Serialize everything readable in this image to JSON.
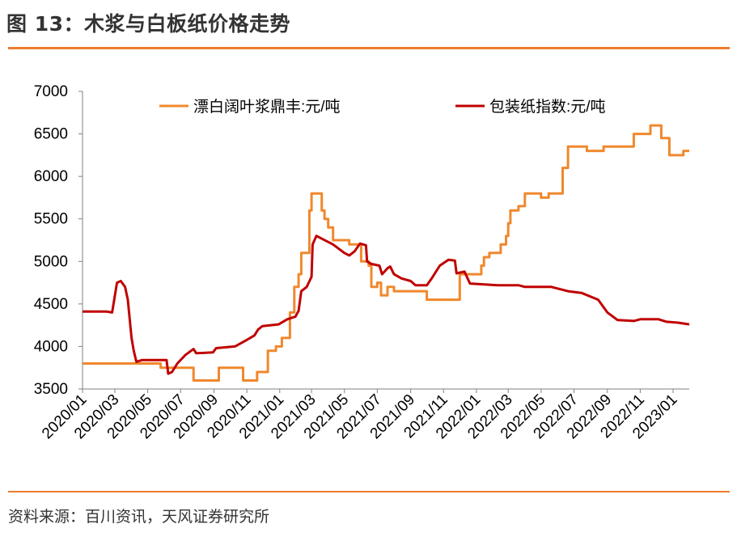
{
  "header": {
    "title": "图 13：木浆与白板纸价格走势"
  },
  "footer": {
    "source": "资料来源：百川资讯，天风证券研究所"
  },
  "colors": {
    "accent": "#ED7D31",
    "pulp": "#F0882D",
    "board": "#C00000",
    "text": "#333333"
  },
  "chart_data": {
    "type": "line",
    "title": "",
    "xlabel": "",
    "ylabel": "",
    "ylim": [
      3500,
      7000
    ],
    "yticks": [
      3500,
      4000,
      4500,
      5000,
      5500,
      6000,
      6500,
      7000
    ],
    "xlim": [
      "2020-01-01",
      "2023-01-31"
    ],
    "xtick_labels": [
      "2020/01",
      "2020/03",
      "2020/05",
      "2020/07",
      "2020/09",
      "2020/11",
      "2021/01",
      "2021/03",
      "2021/05",
      "2021/07",
      "2021/09",
      "2021/11",
      "2022/01",
      "2022/03",
      "2022/05",
      "2022/07",
      "2022/09",
      "2022/11",
      "2023/01"
    ],
    "xtick_dates": [
      "2020-01-01",
      "2020-03-01",
      "2020-05-01",
      "2020-07-01",
      "2020-09-01",
      "2020-11-01",
      "2021-01-01",
      "2021-03-01",
      "2021-05-01",
      "2021-07-01",
      "2021-09-01",
      "2021-11-01",
      "2022-01-01",
      "2022-03-01",
      "2022-05-01",
      "2022-07-01",
      "2022-09-01",
      "2022-11-01",
      "2023-01-01"
    ],
    "grid": false,
    "legend_position": "top",
    "series": [
      {
        "name": "漂白阔叶浆鼎丰:元/吨",
        "color": "#F0882D",
        "step": true,
        "points": [
          [
            "2020-01-01",
            3800
          ],
          [
            "2020-05-25",
            3750
          ],
          [
            "2020-07-25",
            3600
          ],
          [
            "2020-09-10",
            3750
          ],
          [
            "2020-10-25",
            3600
          ],
          [
            "2020-11-20",
            3700
          ],
          [
            "2020-12-10",
            3950
          ],
          [
            "2020-12-25",
            4000
          ],
          [
            "2021-01-05",
            4100
          ],
          [
            "2021-01-20",
            4400
          ],
          [
            "2021-01-28",
            4700
          ],
          [
            "2021-02-05",
            4850
          ],
          [
            "2021-02-10",
            5100
          ],
          [
            "2021-02-25",
            5600
          ],
          [
            "2021-03-01",
            5800
          ],
          [
            "2021-03-20",
            5600
          ],
          [
            "2021-03-25",
            5500
          ],
          [
            "2021-04-01",
            5400
          ],
          [
            "2021-04-10",
            5250
          ],
          [
            "2021-05-10",
            5200
          ],
          [
            "2021-06-01",
            5000
          ],
          [
            "2021-06-15",
            4950
          ],
          [
            "2021-06-20",
            4700
          ],
          [
            "2021-07-01",
            4750
          ],
          [
            "2021-07-08",
            4600
          ],
          [
            "2021-07-20",
            4700
          ],
          [
            "2021-08-01",
            4650
          ],
          [
            "2021-10-01",
            4550
          ],
          [
            "2021-12-01",
            4850
          ],
          [
            "2022-01-01",
            4850
          ],
          [
            "2022-01-10",
            4950
          ],
          [
            "2022-01-15",
            5050
          ],
          [
            "2022-01-25",
            5100
          ],
          [
            "2022-02-15",
            5200
          ],
          [
            "2022-02-25",
            5300
          ],
          [
            "2022-03-01",
            5450
          ],
          [
            "2022-03-05",
            5600
          ],
          [
            "2022-03-20",
            5650
          ],
          [
            "2022-04-01",
            5800
          ],
          [
            "2022-05-01",
            5750
          ],
          [
            "2022-05-15",
            5800
          ],
          [
            "2022-06-10",
            6100
          ],
          [
            "2022-06-20",
            6350
          ],
          [
            "2022-07-25",
            6300
          ],
          [
            "2022-08-25",
            6350
          ],
          [
            "2022-10-20",
            6500
          ],
          [
            "2022-11-20",
            6600
          ],
          [
            "2022-12-10",
            6450
          ],
          [
            "2022-12-25",
            6250
          ],
          [
            "2023-01-20",
            6300
          ],
          [
            "2023-01-31",
            6300
          ]
        ]
      },
      {
        "name": "包装纸指数:元/吨",
        "color": "#C00000",
        "step": false,
        "points": [
          [
            "2020-01-01",
            4410
          ],
          [
            "2020-02-15",
            4410
          ],
          [
            "2020-02-25",
            4400
          ],
          [
            "2020-03-05",
            4750
          ],
          [
            "2020-03-12",
            4770
          ],
          [
            "2020-03-20",
            4700
          ],
          [
            "2020-03-25",
            4550
          ],
          [
            "2020-04-01",
            4100
          ],
          [
            "2020-04-05",
            3950
          ],
          [
            "2020-04-10",
            3820
          ],
          [
            "2020-04-20",
            3840
          ],
          [
            "2020-06-05",
            3840
          ],
          [
            "2020-06-08",
            3680
          ],
          [
            "2020-06-15",
            3700
          ],
          [
            "2020-06-25",
            3800
          ],
          [
            "2020-07-10",
            3900
          ],
          [
            "2020-07-25",
            3970
          ],
          [
            "2020-07-30",
            3920
          ],
          [
            "2020-08-30",
            3930
          ],
          [
            "2020-09-05",
            3980
          ],
          [
            "2020-10-10",
            4000
          ],
          [
            "2020-10-30",
            4070
          ],
          [
            "2020-11-15",
            4130
          ],
          [
            "2020-11-22",
            4200
          ],
          [
            "2020-11-30",
            4240
          ],
          [
            "2020-12-30",
            4260
          ],
          [
            "2021-01-15",
            4320
          ],
          [
            "2021-01-30",
            4350
          ],
          [
            "2021-02-05",
            4420
          ],
          [
            "2021-02-10",
            4650
          ],
          [
            "2021-02-20",
            4700
          ],
          [
            "2021-03-01",
            4820
          ],
          [
            "2021-03-03",
            5200
          ],
          [
            "2021-03-10",
            5300
          ],
          [
            "2021-04-10",
            5200
          ],
          [
            "2021-05-01",
            5100
          ],
          [
            "2021-05-10",
            5070
          ],
          [
            "2021-05-20",
            5120
          ],
          [
            "2021-05-30",
            5210
          ],
          [
            "2021-06-10",
            5190
          ],
          [
            "2021-06-12",
            5000
          ],
          [
            "2021-06-20",
            4970
          ],
          [
            "2021-07-05",
            4950
          ],
          [
            "2021-07-10",
            4850
          ],
          [
            "2021-07-20",
            4920
          ],
          [
            "2021-07-25",
            4940
          ],
          [
            "2021-08-01",
            4850
          ],
          [
            "2021-08-15",
            4800
          ],
          [
            "2021-09-01",
            4770
          ],
          [
            "2021-09-10",
            4720
          ],
          [
            "2021-10-01",
            4720
          ],
          [
            "2021-10-10",
            4800
          ],
          [
            "2021-10-25",
            4950
          ],
          [
            "2021-11-10",
            5020
          ],
          [
            "2021-11-22",
            5010
          ],
          [
            "2021-11-25",
            4860
          ],
          [
            "2021-12-10",
            4880
          ],
          [
            "2021-12-20",
            4740
          ],
          [
            "2022-02-10",
            4720
          ],
          [
            "2022-03-20",
            4720
          ],
          [
            "2022-04-01",
            4700
          ],
          [
            "2022-05-20",
            4700
          ],
          [
            "2022-06-20",
            4650
          ],
          [
            "2022-07-15",
            4630
          ],
          [
            "2022-08-15",
            4550
          ],
          [
            "2022-09-01",
            4400
          ],
          [
            "2022-09-20",
            4310
          ],
          [
            "2022-10-20",
            4300
          ],
          [
            "2022-11-01",
            4320
          ],
          [
            "2022-12-05",
            4320
          ],
          [
            "2022-12-20",
            4290
          ],
          [
            "2023-01-10",
            4280
          ],
          [
            "2023-01-31",
            4260
          ]
        ]
      }
    ]
  }
}
